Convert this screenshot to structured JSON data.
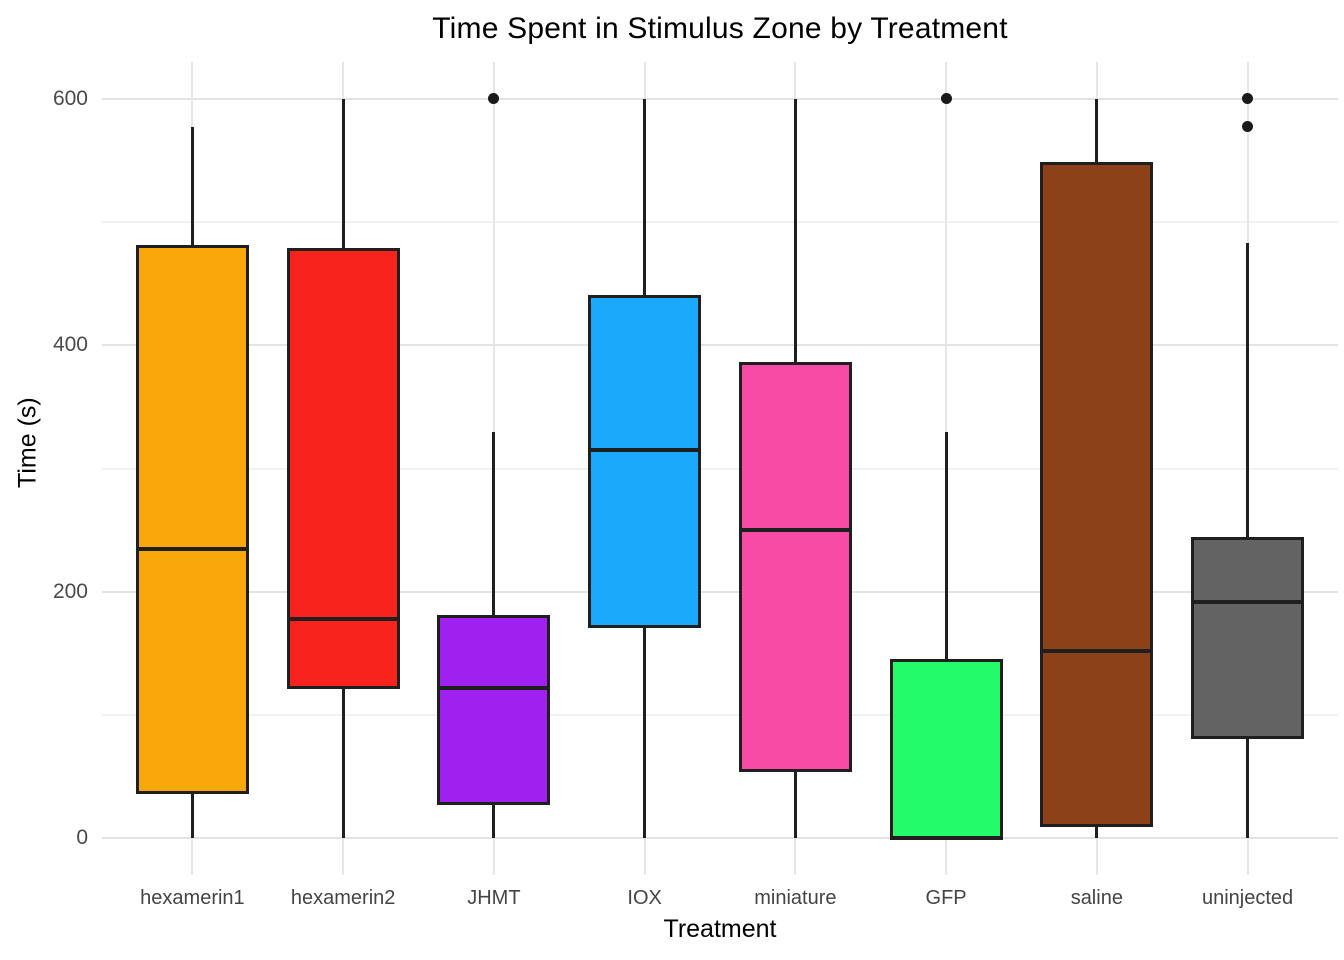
{
  "chart": {
    "title": "Time Spent in Stimulus Zone by Treatment",
    "xlabel": "Treatment",
    "ylabel": "Time (s)"
  },
  "chart_data": {
    "type": "box",
    "title": "Time Spent in Stimulus Zone by Treatment",
    "xlabel": "Treatment",
    "ylabel": "Time (s)",
    "ylim": [
      -30,
      630
    ],
    "yticks": [
      0,
      200,
      400,
      600
    ],
    "yminor_ticks": [
      100,
      300,
      500
    ],
    "grid": "major-and-minor-horizontal, major-vertical",
    "legend": "none",
    "background_color": "#ffffff",
    "gridline_color": "#e3e3e3",
    "box_border_color": "#1f1f1f",
    "categories": [
      "hexamerin1",
      "hexamerin2",
      "JHMT",
      "IOX",
      "miniature",
      "GFP",
      "saline",
      "uninjected"
    ],
    "series": [
      {
        "name": "hexamerin1",
        "color": "#f9a70b",
        "min": 0,
        "q1": 37,
        "median": 235,
        "q3": 480,
        "max": 577,
        "outliers": []
      },
      {
        "name": "hexamerin2",
        "color": "#f8231d",
        "min": 0,
        "q1": 122,
        "median": 178,
        "q3": 478,
        "max": 600,
        "outliers": []
      },
      {
        "name": "JHMT",
        "color": "#a020f0",
        "min": 0,
        "q1": 28,
        "median": 122,
        "q3": 180,
        "max": 330,
        "outliers": [
          600
        ]
      },
      {
        "name": "IOX",
        "color": "#1ba9fc",
        "min": 0,
        "q1": 172,
        "median": 315,
        "q3": 440,
        "max": 600,
        "outliers": []
      },
      {
        "name": "miniature",
        "color": "#f84ba6",
        "min": 0,
        "q1": 55,
        "median": 250,
        "q3": 385,
        "max": 600,
        "outliers": []
      },
      {
        "name": "GFP",
        "color": "#23fb6b",
        "min": 0,
        "q1": 0,
        "median": 0,
        "q3": 144,
        "max": 330,
        "outliers": [
          600
        ]
      },
      {
        "name": "saline",
        "color": "#8c4119",
        "min": 0,
        "q1": 10,
        "median": 152,
        "q3": 548,
        "max": 600,
        "outliers": []
      },
      {
        "name": "uninjected",
        "color": "#636363",
        "min": 0,
        "q1": 82,
        "median": 192,
        "q3": 243,
        "max": 483,
        "outliers": [
          578,
          600
        ]
      }
    ]
  }
}
